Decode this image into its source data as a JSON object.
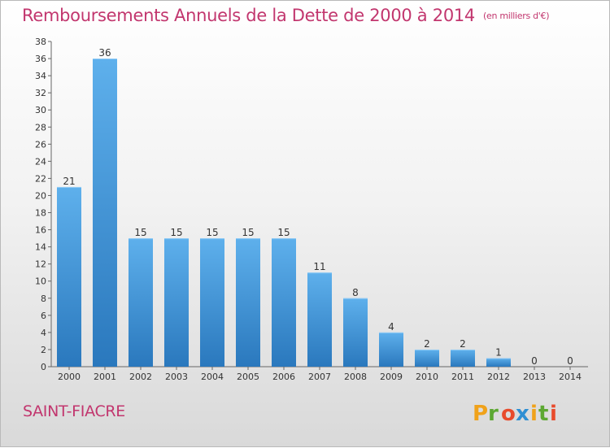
{
  "title": "Remboursements Annuels de la Dette de 2000 à 2014",
  "subtitle": "(en milliers d'€)",
  "commune": "SAINT-FIACRE",
  "logo_text": "Proxiti",
  "colors": {
    "accent": "#c2366e",
    "bar_light": "#5eb0ec",
    "bar_dark": "#2a78bd"
  },
  "chart_data": {
    "type": "bar",
    "title": "Remboursements Annuels de la Dette de 2000 à 2014",
    "subtitle": "(en milliers d'€)",
    "categories": [
      "2000",
      "2001",
      "2002",
      "2003",
      "2004",
      "2005",
      "2006",
      "2007",
      "2008",
      "2009",
      "2010",
      "2011",
      "2012",
      "2013",
      "2014"
    ],
    "values": [
      21,
      36,
      15,
      15,
      15,
      15,
      15,
      11,
      8,
      4,
      2,
      2,
      1,
      0,
      0
    ],
    "ylim": [
      0,
      38
    ],
    "ytick_step": 2,
    "grid": false,
    "data_labels": true
  }
}
